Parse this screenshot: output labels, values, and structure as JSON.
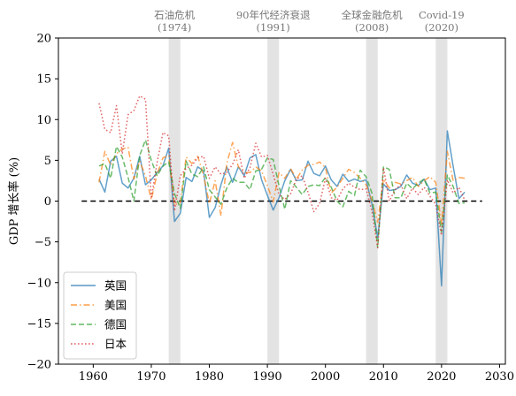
{
  "chart_data": {
    "type": "line",
    "ylabel": "GDP 增长率 (%)",
    "xlim": [
      1954,
      2031
    ],
    "ylim": [
      -20,
      20
    ],
    "xticks": [
      1960,
      1970,
      1980,
      1990,
      2000,
      2010,
      2020,
      2030
    ],
    "yticks": [
      -20,
      -15,
      -10,
      -5,
      0,
      5,
      10,
      15,
      20
    ],
    "grid": false,
    "legend_position": "lower-left",
    "reference_line": {
      "y": 0,
      "x_range": [
        1958,
        2027
      ],
      "style": "dashed",
      "color": "#000000"
    },
    "shaded_events": [
      {
        "label_line1": "石油危机",
        "label_line2": "(1974)",
        "x_start": 1973,
        "x_end": 1975
      },
      {
        "label_line1": "90年代经济衰退",
        "label_line2": "(1991)",
        "x_start": 1990,
        "x_end": 1992
      },
      {
        "label_line1": "全球金融危机",
        "label_line2": "(2008)",
        "x_start": 2007,
        "x_end": 2009
      },
      {
        "label_line1": "Covid-19",
        "label_line2": "(2020)",
        "x_start": 2019,
        "x_end": 2021
      }
    ],
    "series": [
      {
        "name": "英国",
        "color": "#1f77b4",
        "dash": "solid",
        "x": [
          1961,
          1962,
          1963,
          1964,
          1965,
          1966,
          1967,
          1968,
          1969,
          1970,
          1971,
          1972,
          1973,
          1974,
          1975,
          1976,
          1977,
          1978,
          1979,
          1980,
          1981,
          1982,
          1983,
          1984,
          1985,
          1986,
          1987,
          1988,
          1989,
          1990,
          1991,
          1992,
          1993,
          1994,
          1995,
          1996,
          1997,
          1998,
          1999,
          2000,
          2001,
          2002,
          2003,
          2004,
          2005,
          2006,
          2007,
          2008,
          2009,
          2010,
          2011,
          2012,
          2013,
          2014,
          2015,
          2016,
          2017,
          2018,
          2019,
          2020,
          2021,
          2022,
          2023,
          2024
        ],
        "y": [
          2.7,
          1.1,
          4.9,
          5.5,
          2.2,
          1.6,
          2.8,
          5.5,
          2.0,
          2.6,
          3.5,
          4.3,
          6.5,
          -2.5,
          -1.5,
          2.9,
          2.4,
          4.2,
          3.7,
          -2.0,
          -0.8,
          2.0,
          4.2,
          2.3,
          4.2,
          3.1,
          5.3,
          5.7,
          2.6,
          0.7,
          -1.1,
          0.4,
          2.5,
          3.9,
          2.5,
          2.6,
          4.9,
          3.4,
          3.1,
          4.3,
          2.6,
          1.8,
          3.3,
          2.4,
          2.7,
          2.4,
          2.6,
          -0.3,
          -4.5,
          2.1,
          1.3,
          1.4,
          1.8,
          3.2,
          2.2,
          1.9,
          2.7,
          1.4,
          1.6,
          -10.4,
          8.6,
          4.3,
          0.3,
          1.1
        ]
      },
      {
        "name": "美国",
        "color": "#ff7f0e",
        "dash": "dashdot",
        "x": [
          1961,
          1962,
          1963,
          1964,
          1965,
          1966,
          1967,
          1968,
          1969,
          1970,
          1971,
          1972,
          1973,
          1974,
          1975,
          1976,
          1977,
          1978,
          1979,
          1980,
          1981,
          1982,
          1983,
          1984,
          1985,
          1986,
          1987,
          1988,
          1989,
          1990,
          1991,
          1992,
          1993,
          1994,
          1995,
          1996,
          1997,
          1998,
          1999,
          2000,
          2001,
          2002,
          2003,
          2004,
          2005,
          2006,
          2007,
          2008,
          2009,
          2010,
          2011,
          2012,
          2013,
          2014,
          2015,
          2016,
          2017,
          2018,
          2019,
          2020,
          2021,
          2022,
          2023,
          2024
        ],
        "y": [
          2.3,
          6.1,
          4.4,
          5.8,
          6.4,
          6.6,
          2.7,
          4.9,
          3.1,
          0.2,
          3.3,
          5.3,
          5.6,
          -0.5,
          -0.2,
          5.4,
          4.6,
          5.5,
          3.2,
          -0.3,
          2.5,
          -1.8,
          4.6,
          7.2,
          4.2,
          3.5,
          3.5,
          4.2,
          3.7,
          1.9,
          -0.1,
          3.5,
          2.8,
          4.0,
          2.7,
          3.8,
          4.4,
          4.5,
          4.8,
          4.1,
          1.0,
          1.7,
          2.8,
          3.9,
          3.5,
          2.8,
          2.0,
          0.1,
          -2.6,
          2.7,
          1.6,
          2.3,
          2.1,
          2.5,
          2.9,
          1.8,
          2.5,
          3.0,
          2.3,
          -2.8,
          6.1,
          2.5,
          2.9,
          2.8
        ]
      },
      {
        "name": "德国",
        "color": "#2ca02c",
        "dash": "dashed",
        "x": [
          1961,
          1962,
          1963,
          1964,
          1965,
          1966,
          1967,
          1968,
          1969,
          1970,
          1971,
          1972,
          1973,
          1974,
          1975,
          1976,
          1977,
          1978,
          1979,
          1980,
          1981,
          1982,
          1983,
          1984,
          1985,
          1986,
          1987,
          1988,
          1989,
          1990,
          1991,
          1992,
          1993,
          1994,
          1995,
          1996,
          1997,
          1998,
          1999,
          2000,
          2001,
          2002,
          2003,
          2004,
          2005,
          2006,
          2007,
          2008,
          2009,
          2010,
          2011,
          2012,
          2013,
          2014,
          2015,
          2016,
          2017,
          2018,
          2019,
          2020,
          2021,
          2022,
          2023,
          2024
        ],
        "y": [
          4.3,
          4.6,
          2.8,
          6.7,
          5.4,
          2.9,
          0.0,
          5.6,
          7.5,
          5.0,
          3.1,
          4.3,
          4.8,
          0.9,
          -0.9,
          4.9,
          3.3,
          3.0,
          4.2,
          1.4,
          0.5,
          -0.4,
          1.6,
          2.8,
          2.3,
          2.3,
          1.4,
          3.7,
          3.9,
          5.3,
          5.1,
          1.9,
          -1.0,
          2.5,
          1.7,
          0.8,
          1.8,
          2.0,
          1.9,
          2.9,
          1.7,
          0.0,
          -0.7,
          1.2,
          0.7,
          3.8,
          3.0,
          1.0,
          -5.7,
          4.2,
          3.9,
          0.4,
          0.4,
          2.2,
          1.5,
          2.2,
          2.7,
          1.0,
          1.1,
          -3.8,
          3.2,
          1.8,
          -0.3,
          -0.2
        ]
      },
      {
        "name": "日本",
        "color": "#d62728",
        "dash": "dotted",
        "x": [
          1961,
          1962,
          1963,
          1964,
          1965,
          1966,
          1967,
          1968,
          1969,
          1970,
          1971,
          1972,
          1973,
          1974,
          1975,
          1976,
          1977,
          1978,
          1979,
          1980,
          1981,
          1982,
          1983,
          1984,
          1985,
          1986,
          1987,
          1988,
          1989,
          1990,
          1991,
          1992,
          1993,
          1994,
          1995,
          1996,
          1997,
          1998,
          1999,
          2000,
          2001,
          2002,
          2003,
          2004,
          2005,
          2006,
          2007,
          2008,
          2009,
          2010,
          2011,
          2012,
          2013,
          2014,
          2015,
          2016,
          2017,
          2018,
          2019,
          2020,
          2021,
          2022,
          2023,
          2024
        ],
        "y": [
          12.0,
          8.8,
          8.4,
          11.7,
          5.8,
          10.6,
          11.1,
          12.9,
          12.5,
          0.3,
          4.7,
          8.4,
          8.0,
          -1.2,
          3.1,
          4.0,
          4.4,
          5.3,
          5.5,
          2.8,
          4.2,
          3.3,
          3.5,
          4.5,
          6.3,
          2.8,
          4.1,
          7.1,
          5.4,
          5.6,
          3.3,
          0.8,
          0.2,
          0.9,
          2.7,
          3.1,
          1.1,
          -1.3,
          -0.3,
          2.8,
          0.4,
          0.1,
          1.5,
          2.2,
          1.7,
          1.4,
          1.5,
          -1.2,
          -5.7,
          4.1,
          0.0,
          1.4,
          2.0,
          0.3,
          1.6,
          0.8,
          1.7,
          0.6,
          -0.4,
          -4.2,
          2.6,
          1.0,
          1.7,
          0.1
        ]
      }
    ]
  }
}
